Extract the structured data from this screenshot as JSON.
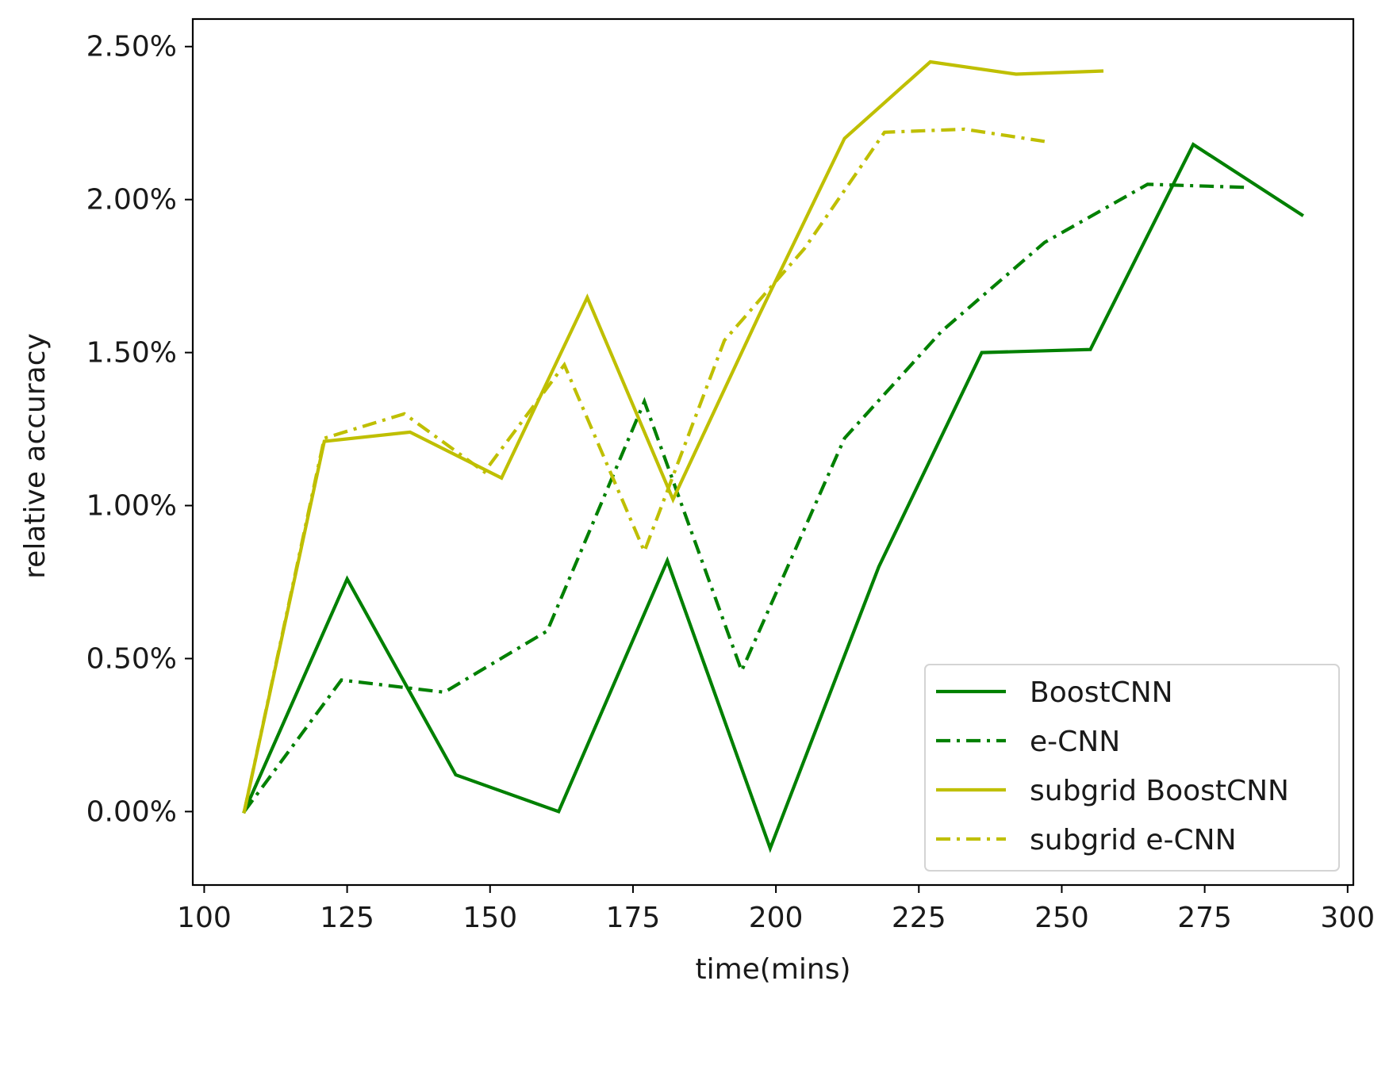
{
  "chart_data": {
    "type": "line",
    "title": "",
    "xlabel": "time(mins)",
    "ylabel": "relative accuracy",
    "xlim": [
      98,
      301
    ],
    "ylim": [
      -0.24,
      2.59
    ],
    "xticks": [
      100,
      125,
      150,
      175,
      200,
      225,
      250,
      275,
      300
    ],
    "yticks": [
      0,
      0.5,
      1.0,
      1.5,
      2.0,
      2.5
    ],
    "ytick_labels": [
      "0.00%",
      "0.50%",
      "1.00%",
      "1.50%",
      "2.00%",
      "2.50%"
    ],
    "y_unit": "%",
    "grid": false,
    "legend_position": "lower-right",
    "series": [
      {
        "name": "BoostCNN",
        "color": "#008000",
        "linestyle": "solid",
        "x": [
          107,
          125,
          144,
          162,
          181,
          199,
          218,
          236,
          255,
          273,
          292
        ],
        "y": [
          0.0,
          0.76,
          0.12,
          0.0,
          0.82,
          -0.12,
          0.8,
          1.5,
          1.51,
          2.18,
          1.95
        ]
      },
      {
        "name": "e-CNN",
        "color": "#008000",
        "linestyle": "dashdot",
        "x": [
          107,
          124,
          142,
          160,
          177,
          194,
          212,
          229,
          247,
          265,
          282
        ],
        "y": [
          0.0,
          0.43,
          0.39,
          0.59,
          1.34,
          0.46,
          1.22,
          1.57,
          1.86,
          2.05,
          2.04
        ]
      },
      {
        "name": "subgrid BoostCNN",
        "color": "#bfbf00",
        "linestyle": "solid",
        "x": [
          107,
          121,
          136,
          152,
          167,
          182,
          197,
          212,
          227,
          242,
          257
        ],
        "y": [
          0.0,
          1.21,
          1.24,
          1.09,
          1.68,
          1.02,
          1.62,
          2.2,
          2.45,
          2.41,
          2.42
        ]
      },
      {
        "name": "subgrid e-CNN",
        "color": "#bfbf00",
        "linestyle": "dashdot",
        "x": [
          107,
          121,
          135,
          149,
          163,
          177,
          191,
          205,
          219,
          233,
          247
        ],
        "y": [
          0.0,
          1.22,
          1.3,
          1.11,
          1.46,
          0.85,
          1.54,
          1.84,
          2.22,
          2.23,
          2.19
        ]
      }
    ]
  }
}
